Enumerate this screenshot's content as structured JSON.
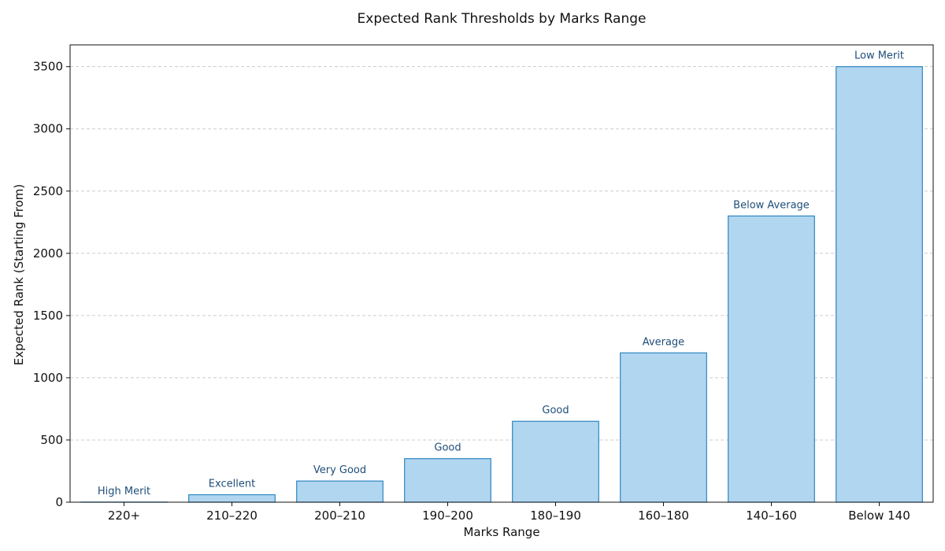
{
  "chart_data": {
    "type": "bar",
    "title": "Expected Rank Thresholds by Marks Range",
    "xlabel": "Marks Range",
    "ylabel": "Expected Rank (Starting From)",
    "categories": [
      "220+",
      "210–220",
      "200–210",
      "190–200",
      "180–190",
      "160–180",
      "140–160",
      "Below 140"
    ],
    "values": [
      1,
      60,
      170,
      350,
      650,
      1200,
      2300,
      3500
    ],
    "data_labels": [
      "High Merit",
      "Excellent",
      "Very Good",
      "Good",
      "Good",
      "Average",
      "Below Average",
      "Low Merit"
    ],
    "ylim": [
      0,
      3675
    ],
    "yticks": [
      0,
      500,
      1000,
      1500,
      2000,
      2500,
      3000,
      3500
    ],
    "grid": "y-dashed",
    "colors": {
      "bar_fill": "#b1d6f0",
      "bar_stroke": "#2e86c1",
      "data_label": "#1f4e79"
    }
  }
}
